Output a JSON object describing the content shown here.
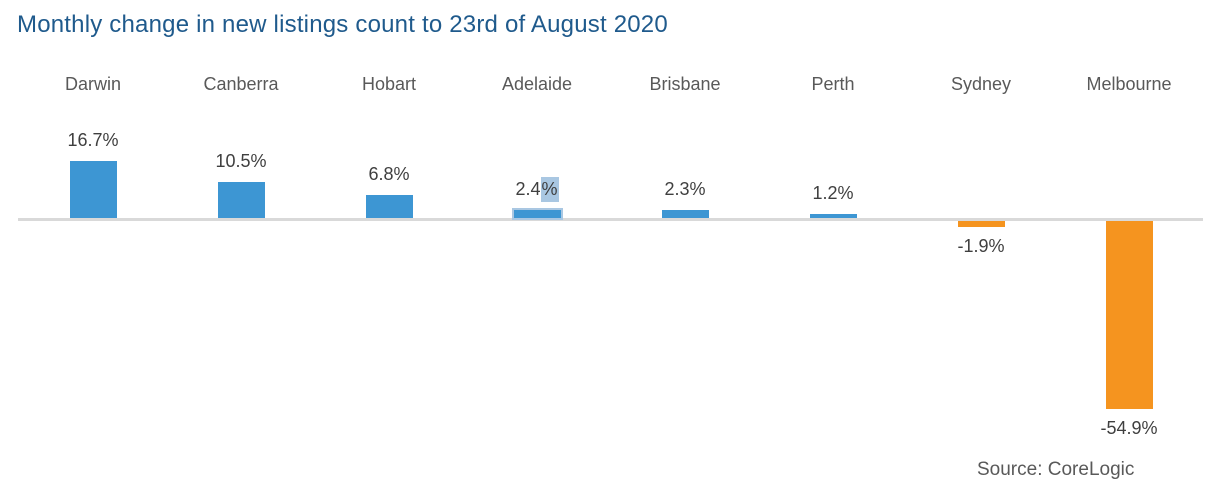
{
  "title": "Monthly change in new listings count to 23rd of August 2020",
  "source": "Source: CoreLogic",
  "colors": {
    "title": "#1f5a8c",
    "positive_bar": "#3d96d3",
    "negative_bar": "#f5941f",
    "axis_line": "#d9d9d9",
    "category_label": "#595959",
    "value_label": "#3f3f3f",
    "selection_highlight": "#a9c7e2"
  },
  "chart_data": {
    "type": "bar",
    "title": "Monthly change in new listings count to 23rd of August 2020",
    "categories": [
      "Darwin",
      "Canberra",
      "Hobart",
      "Adelaide",
      "Brisbane",
      "Perth",
      "Sydney",
      "Melbourne"
    ],
    "values": [
      16.7,
      10.5,
      6.8,
      2.4,
      2.3,
      1.2,
      -1.9,
      -54.9
    ],
    "value_labels": [
      "16.7%",
      "10.5%",
      "6.8%",
      "2.4%",
      "2.3%",
      "1.2%",
      "-1.9%",
      "-54.9%"
    ],
    "xlabel": "",
    "ylabel": "",
    "ylim": [
      -60,
      20
    ],
    "grid": false,
    "legend": "none",
    "axis_ticks": "none",
    "annotations": {
      "selected_category": "Adelaide",
      "selection_note": "light-blue text-selection highlight over the % of the 2.4% label and a pale blue outline around the Adelaide bar"
    }
  }
}
